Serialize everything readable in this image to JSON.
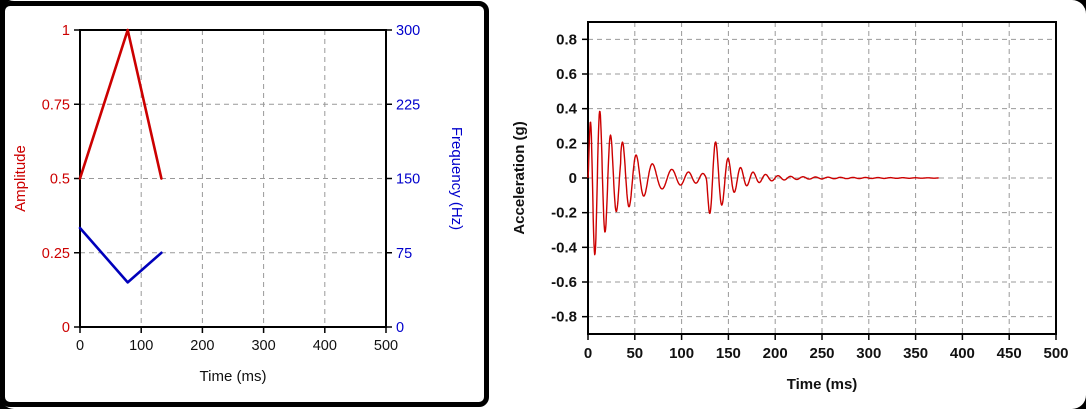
{
  "figure": {
    "background": "#ffffff",
    "frame_color": "#000000"
  },
  "chart_data": [
    {
      "id": "tuning-chart",
      "type": "line",
      "title": "",
      "xlabel": "Time (ms)",
      "xlim": [
        0,
        500
      ],
      "x_ticks": [
        0,
        100,
        200,
        300,
        400,
        500
      ],
      "x_tick_labels": [
        "0",
        "100",
        "200",
        "300",
        "400",
        "500"
      ],
      "grid": {
        "color": "#999999",
        "dash": "5,4",
        "on": true
      },
      "axes": {
        "left": {
          "label": "Amplitude",
          "color": "#cc0000",
          "lim": [
            0,
            1
          ],
          "ticks": [
            0,
            0.25,
            0.5,
            0.75,
            1
          ],
          "tick_labels": [
            "0",
            "0.25",
            "0.5",
            "0.75",
            "1"
          ]
        },
        "right": {
          "label": "Frequency (Hz)",
          "color": "#0000cc",
          "lim": [
            0,
            300
          ],
          "ticks": [
            0,
            75,
            150,
            225,
            300
          ],
          "tick_labels": [
            "0",
            "75",
            "150",
            "225",
            "300"
          ]
        }
      },
      "series": [
        {
          "name": "amplitude",
          "axis": "left",
          "color": "#cc0000",
          "width": 2.6,
          "x": [
            0,
            78,
            133
          ],
          "y": [
            0.5,
            1.0,
            0.5
          ]
        },
        {
          "name": "frequency",
          "axis": "right",
          "color": "#0000bb",
          "width": 2.6,
          "x": [
            0,
            78,
            133
          ],
          "y": [
            100,
            45,
            75
          ]
        }
      ]
    },
    {
      "id": "acceleration-chart",
      "type": "line",
      "title": "",
      "xlabel": "Time (ms)",
      "ylabel": "Acceleration (g)",
      "xlim": [
        0,
        500
      ],
      "ylim": [
        -0.9,
        0.9
      ],
      "x_ticks": [
        0,
        50,
        100,
        150,
        200,
        250,
        300,
        350,
        400,
        450,
        500
      ],
      "x_tick_labels": [
        "0",
        "50",
        "100",
        "150",
        "200",
        "250",
        "300",
        "350",
        "400",
        "450",
        "500"
      ],
      "y_ticks": [
        -0.8,
        -0.6,
        -0.4,
        -0.2,
        0,
        0.2,
        0.4,
        0.6,
        0.8
      ],
      "y_tick_labels": [
        "-0.8",
        "-0.6",
        "-0.4",
        "-0.2",
        "0",
        "0.2",
        "0.4",
        "0.6",
        "0.8"
      ],
      "grid": {
        "color": "#999999",
        "dash": "5,4",
        "on": true
      },
      "series": [
        {
          "name": "acceleration",
          "color": "#cc0000",
          "width": 1.4,
          "peak_g": 0.45,
          "signal_end_ms": 375,
          "synthesis": {
            "sample_step_ms": 0.4,
            "end_ms": 375,
            "freq_profile": {
              "t": [
                0,
                78,
                133,
                375
              ],
              "hz": [
                100,
                45,
                75,
                75
              ]
            },
            "bursts": [
              {
                "t0": 0,
                "rise_ms": 3,
                "decay_ms": 25,
                "amp": 0.65
              },
              {
                "t0": 126,
                "rise_ms": 4,
                "decay_ms": 18,
                "amp": 0.36
              }
            ],
            "ripple": {
              "from_ms": 35,
              "amp": 0.06,
              "decay_ms": 85
            }
          }
        }
      ]
    }
  ]
}
